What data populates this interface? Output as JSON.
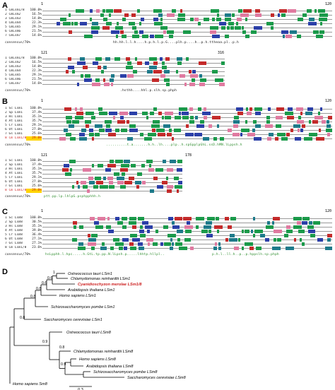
{
  "panels": {
    "a": {
      "label": "A",
      "block1": {
        "start": "1",
        "end": "120"
      },
      "block2": {
        "start": "121",
        "end": "316"
      },
      "rows": [
        {
          "name": "1 CmLsm1/8",
          "pct": "100.0%"
        },
        {
          "name": "2 CmLsm2",
          "pct": "16.5%"
        },
        {
          "name": "3 CmLsm3",
          "pct": "14.0%"
        },
        {
          "name": "4 CmLsm4",
          "pct": "22.3%"
        },
        {
          "name": "5 CmLsm5",
          "pct": "29.1%"
        },
        {
          "name": "6 CmLsm6",
          "pct": "21.5%"
        },
        {
          "name": "7 CmLsm7",
          "pct": "14.6%"
        }
      ],
      "consensus_label": "consensus/70%",
      "consensus1": "hh.hh.l.l.h....h.p.h.l.p.G....plh.p....h..p.h.ttheaa.pl..p.h",
      "consensus2": ".hsthh....hhl.p.slh.sp.phph"
    },
    "b": {
      "label": "B",
      "block1": {
        "start": "1",
        "end": "120"
      },
      "block2": {
        "start": "121",
        "end": "178"
      },
      "rows": [
        {
          "name": "1 Sc Lsm1",
          "pct": "100.0%"
        },
        {
          "name": "2 Sp Lsm1",
          "pct": "37.4%"
        },
        {
          "name": "3 Hs Lsm1",
          "pct": "35.1%"
        },
        {
          "name": "4 At Lsm1",
          "pct": "35.7%"
        },
        {
          "name": "5 Cr Lsm1",
          "pct": "29.1%"
        },
        {
          "name": "6 Ot Lsm1",
          "pct": "27.0%"
        },
        {
          "name": "7 Gs Lsm1",
          "pct": "25.6%"
        },
        {
          "name": "8 Cm Lsm1/8",
          "pct": "29.0%"
        }
      ],
      "consensus_label": "consensus/70%",
      "consensus1": "..........t.a.......h.h..lh....plp..h.spGpplpGhL.ssD.hMN.lLppsh.h",
      "consensus2": "ptt.pp.lp.lhlpG.psphpphhh.h"
    },
    "c": {
      "label": "C",
      "block1": {
        "start": "1",
        "end": "120"
      },
      "rows": [
        {
          "name": "1 Sc Lsm8",
          "pct": "100.0%"
        },
        {
          "name": "2 Sp Lsm8",
          "pct": "30.5%"
        },
        {
          "name": "3 Hs Lsm8",
          "pct": "35.1%"
        },
        {
          "name": "4 At Lsm8",
          "pct": "39.0%"
        },
        {
          "name": "5 Cr Lsm8",
          "pct": "36.4%"
        },
        {
          "name": "6 Ot Lsm8",
          "pct": "27.1%"
        },
        {
          "name": "7 Gs Lsm8",
          "pct": "27.1%"
        },
        {
          "name": "8 Cm Lsm1/8",
          "pct": "23.6%"
        }
      ],
      "consensus_label": "consensus/70%",
      "consensus1": "hsLpphh.l.hpc.....h.GtL.tp.pp.N.lLpsh.p.....lhhtp.hllpl..",
      "consensus2": "p.h.l..ll.h..p..p.hppslh.sp.phph"
    },
    "d": {
      "label": "D",
      "taxa": [
        {
          "name": "Ostreococcus tauri LSm1",
          "highlight": false
        },
        {
          "name": "Chlamydomonas reinhardtii LSm1",
          "highlight": false
        },
        {
          "name": "Cyanidioschyzon merolae LSm1/8",
          "highlight": true
        },
        {
          "name": "Arabidopsis thaliana LSm1",
          "highlight": false
        },
        {
          "name": "Homo sapiens LSm1",
          "highlight": false
        },
        {
          "name": "Schizosaccharomyces pombe LSm1",
          "highlight": false
        },
        {
          "name": "Saccharomyces cerevisiae LSm1",
          "highlight": false
        },
        {
          "name": "Ostreococcus tauri LSm8",
          "highlight": false
        },
        {
          "name": "Chlamydomonas reinhardtii LSm8",
          "highlight": false
        },
        {
          "name": "Homo sapiens LSm8",
          "highlight": false
        },
        {
          "name": "Arabidopsis thaliana LSm8",
          "highlight": false
        },
        {
          "name": "Schizosaccharomyces pombe LSm8",
          "highlight": false
        },
        {
          "name": "Saccharomyces cerevisiae LSm8",
          "highlight": false
        },
        {
          "name": "Homo sapiens Sm8",
          "highlight": false
        }
      ],
      "supports": [
        "1",
        "0.6",
        "0.6",
        "0.8",
        "0.8",
        "0.8",
        "0.9",
        "0.8",
        "0.9"
      ],
      "scale_label": "0.3",
      "colors": {
        "highlight": "#cc1f1f",
        "branch": "#000000"
      }
    }
  },
  "colors": {
    "green": "#1a9a4a",
    "blue": "#2b3fa8",
    "teal": "#1d7a8a",
    "red": "#c42a2a",
    "pink": "#e07aa0",
    "yellow": "#ffd400",
    "consensus": "#2a8a2a"
  }
}
